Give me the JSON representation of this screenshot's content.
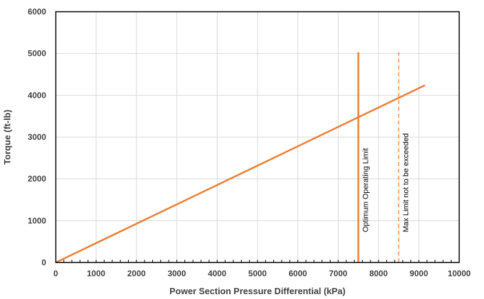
{
  "chart_data": {
    "type": "line",
    "title": "",
    "xlabel": "Power Section Pressure Differential (kPa)",
    "ylabel": "Torque (ft-lb)",
    "xlim": [
      0,
      10000
    ],
    "ylim": [
      0,
      6000
    ],
    "x_ticks": [
      0,
      1000,
      2000,
      3000,
      4000,
      5000,
      6000,
      7000,
      8000,
      9000,
      10000
    ],
    "y_ticks": [
      0,
      1000,
      2000,
      3000,
      4000,
      5000,
      6000
    ],
    "x_tick_labels": [
      "0",
      "1000",
      "2000",
      "3000",
      "4000",
      "5000",
      "6000",
      "7000",
      "8000",
      "9000",
      "10000"
    ],
    "y_tick_labels": [
      "0",
      "1000",
      "2000",
      "3000",
      "4000",
      "5000",
      "6000"
    ],
    "grid": true,
    "series": [
      {
        "x": [
          0,
          9150
        ],
        "y": [
          0,
          4240
        ],
        "color": "#ED7D31"
      }
    ],
    "reference_lines": [
      {
        "orientation": "vertical",
        "x": 7500,
        "y_range": [
          0,
          5030
        ],
        "style": "solid",
        "color": "#ED7D31",
        "label": "Optimum Operating Limit"
      },
      {
        "orientation": "vertical",
        "x": 8500,
        "y_range": [
          0,
          5030
        ],
        "style": "dashed",
        "color": "#ED7D31",
        "label": "Max Limit not to be exceeded"
      }
    ]
  }
}
